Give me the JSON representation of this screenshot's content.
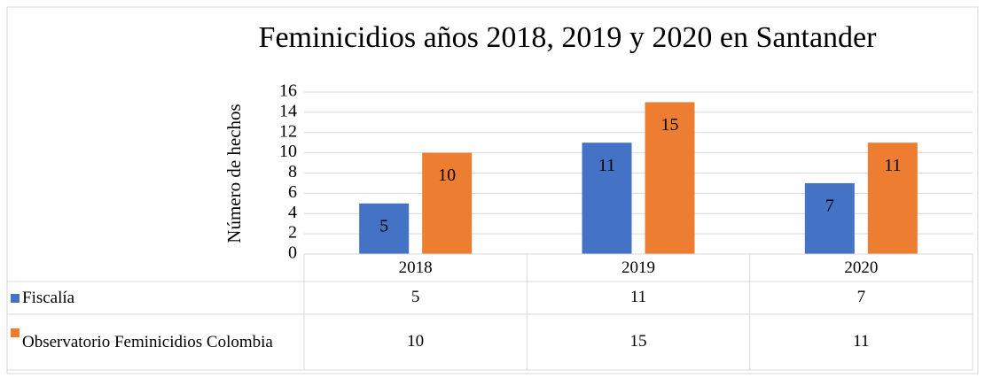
{
  "chart_data": {
    "type": "bar",
    "title": "Feminicidios años 2018, 2019 y 2020 en Santander",
    "y_label": "Número de hechos",
    "categories": [
      "2018",
      "2019",
      "2020"
    ],
    "series": [
      {
        "name": "Fiscalía",
        "color": "#4472c4",
        "values": [
          5,
          11,
          7
        ]
      },
      {
        "name": "Observatorio Feminicidios Colombia",
        "color": "#ed7d31",
        "values": [
          10,
          15,
          11
        ]
      }
    ],
    "ylim": [
      0,
      16
    ],
    "yticks": [
      0,
      2,
      4,
      6,
      8,
      10,
      12,
      14,
      16
    ],
    "grid": true
  }
}
